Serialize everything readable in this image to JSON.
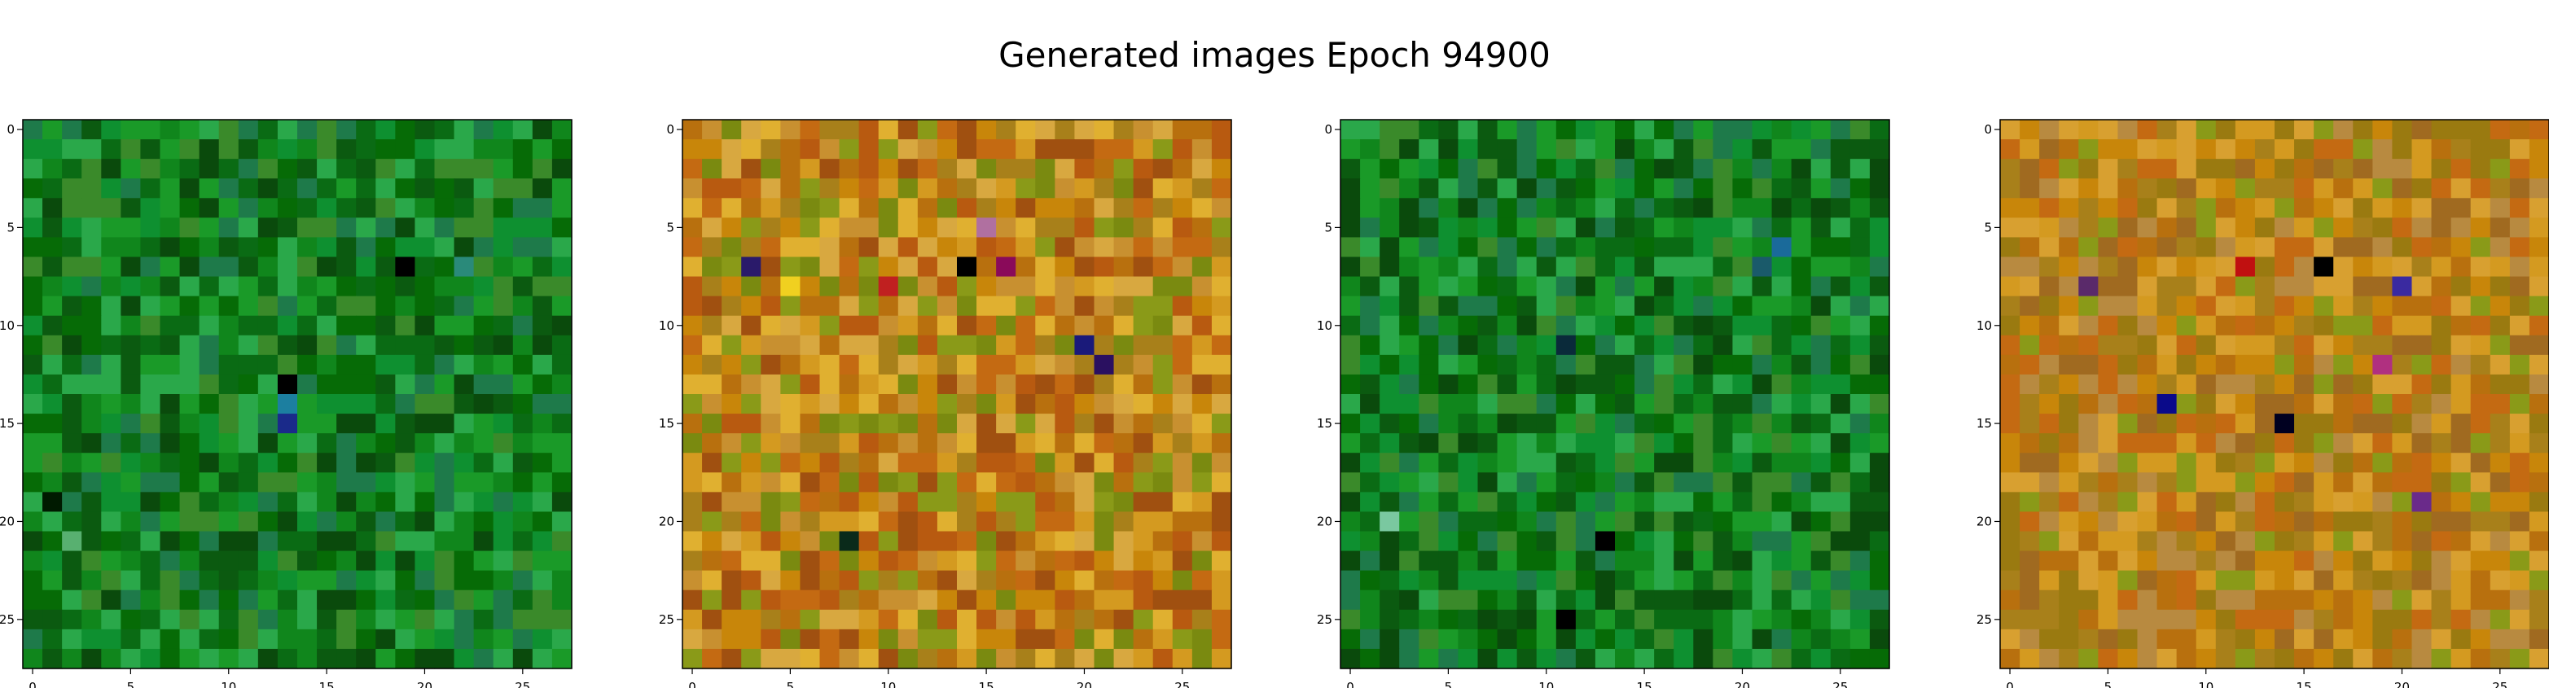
{
  "suptitle": "Generated images Epoch 94900",
  "chart_data": [
    {
      "type": "heatmap",
      "title": "",
      "xlabel": "",
      "ylabel": "",
      "grid_size": 28,
      "x_ticks": [
        "0",
        "5",
        "10",
        "15",
        "20",
        "25"
      ],
      "y_ticks": [
        "0",
        "5",
        "10",
        "15",
        "20",
        "25"
      ],
      "palette": [
        "#0a6b14",
        "#10861c",
        "#1a9a28",
        "#0b5a10",
        "#2aa84a",
        "#0a4a0c",
        "#3a8a2a",
        "#1e7a4a",
        "#0e9030",
        "#066b06"
      ],
      "accent_pixels": [
        {
          "x": 13,
          "y": 13,
          "color": "#000000"
        },
        {
          "x": 13,
          "y": 14,
          "color": "#1c7fa0"
        },
        {
          "x": 13,
          "y": 15,
          "color": "#1a2a8a"
        },
        {
          "x": 19,
          "y": 7,
          "color": "#000000"
        },
        {
          "x": 2,
          "y": 21,
          "color": "#58b070"
        },
        {
          "x": 1,
          "y": 19,
          "color": "#001a00"
        },
        {
          "x": 22,
          "y": 7,
          "color": "#2a8a7a"
        }
      ]
    },
    {
      "type": "heatmap",
      "title": "",
      "xlabel": "",
      "ylabel": "",
      "grid_size": 28,
      "x_ticks": [
        "0",
        "5",
        "10",
        "15",
        "20",
        "25"
      ],
      "y_ticks": [
        "0",
        "5",
        "10",
        "15",
        "20",
        "25"
      ],
      "palette": [
        "#c8860a",
        "#b8700e",
        "#d49a20",
        "#a8801a",
        "#c46a12",
        "#8a9a18",
        "#d8a840",
        "#b85a10",
        "#7a8a10",
        "#c89030",
        "#a05010",
        "#e0b030"
      ],
      "accent_pixels": [
        {
          "x": 14,
          "y": 7,
          "color": "#000000"
        },
        {
          "x": 3,
          "y": 7,
          "color": "#2a1a6a"
        },
        {
          "x": 16,
          "y": 7,
          "color": "#8a0a5a"
        },
        {
          "x": 20,
          "y": 11,
          "color": "#1a1a7a"
        },
        {
          "x": 8,
          "y": 21,
          "color": "#0a2a1a"
        },
        {
          "x": 5,
          "y": 8,
          "color": "#f0d020"
        },
        {
          "x": 21,
          "y": 12,
          "color": "#2a1060"
        },
        {
          "x": 10,
          "y": 8,
          "color": "#c02020"
        },
        {
          "x": 15,
          "y": 5,
          "color": "#b070a0"
        }
      ]
    },
    {
      "type": "heatmap",
      "title": "",
      "xlabel": "",
      "ylabel": "",
      "grid_size": 28,
      "x_ticks": [
        "0",
        "5",
        "10",
        "15",
        "20",
        "25"
      ],
      "y_ticks": [
        "0",
        "5",
        "10",
        "15",
        "20",
        "25"
      ],
      "palette": [
        "#0a6b14",
        "#10861c",
        "#1a9a28",
        "#0b5a10",
        "#2aa84a",
        "#0a4a0c",
        "#3a8a2a",
        "#1e7a4a",
        "#0e9030",
        "#066b06"
      ],
      "accent_pixels": [
        {
          "x": 13,
          "y": 21,
          "color": "#000000"
        },
        {
          "x": 2,
          "y": 20,
          "color": "#7ac8a0"
        },
        {
          "x": 22,
          "y": 6,
          "color": "#1a6a9a"
        },
        {
          "x": 11,
          "y": 11,
          "color": "#0a2a3a"
        },
        {
          "x": 11,
          "y": 25,
          "color": "#000000"
        },
        {
          "x": 21,
          "y": 7,
          "color": "#1a5a6a"
        }
      ]
    },
    {
      "type": "heatmap",
      "title": "",
      "xlabel": "",
      "ylabel": "",
      "grid_size": 28,
      "x_ticks": [
        "0",
        "5",
        "10",
        "15",
        "20",
        "25"
      ],
      "y_ticks": [
        "0",
        "5",
        "10",
        "15",
        "20",
        "25"
      ],
      "palette": [
        "#c8860a",
        "#b8700e",
        "#d49a20",
        "#a8801a",
        "#c46a12",
        "#8a9a18",
        "#b88a40",
        "#a06a20",
        "#d8a030",
        "#9a7a10"
      ],
      "accent_pixels": [
        {
          "x": 8,
          "y": 14,
          "color": "#0a0a8a"
        },
        {
          "x": 16,
          "y": 7,
          "color": "#000000"
        },
        {
          "x": 20,
          "y": 8,
          "color": "#3a2aa0"
        },
        {
          "x": 12,
          "y": 7,
          "color": "#c01010"
        },
        {
          "x": 4,
          "y": 8,
          "color": "#5a2a6a"
        },
        {
          "x": 21,
          "y": 19,
          "color": "#6a2a8a"
        },
        {
          "x": 14,
          "y": 15,
          "color": "#000020"
        },
        {
          "x": 19,
          "y": 12,
          "color": "#b03080"
        }
      ]
    }
  ]
}
